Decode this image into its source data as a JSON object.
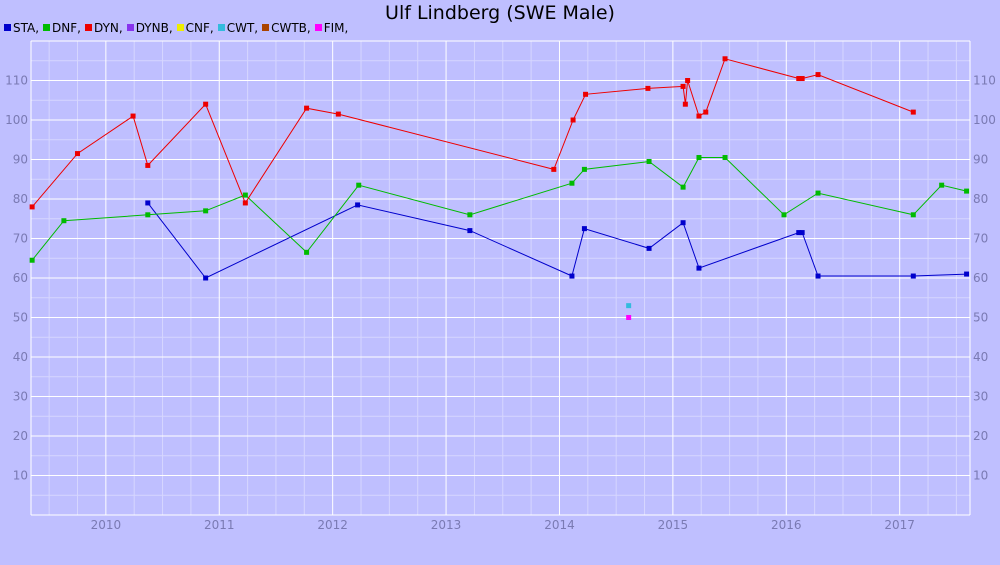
{
  "chart_data": {
    "type": "line",
    "title": "Ulf Lindberg (SWE Male)",
    "xlabel": "",
    "ylabel": "",
    "xlim": [
      2009.34,
      2017.62
    ],
    "ylim": [
      0,
      120
    ],
    "x_ticks": [
      "2010",
      "2011",
      "2012",
      "2013",
      "2014",
      "2015",
      "2016",
      "2017"
    ],
    "y_ticks": [
      "10",
      "20",
      "30",
      "40",
      "50",
      "60",
      "70",
      "80",
      "90",
      "100",
      "110"
    ],
    "grid": true,
    "legend_position": "top-left",
    "series": [
      {
        "name": "STA",
        "color": "#0000cc",
        "points": [
          [
            2010.37,
            79
          ],
          [
            2010.88,
            60
          ],
          [
            2012.22,
            78.5
          ],
          [
            2013.21,
            72
          ],
          [
            2014.11,
            60.5
          ],
          [
            2014.22,
            72.5
          ],
          [
            2014.79,
            67.5
          ],
          [
            2015.09,
            74
          ],
          [
            2015.23,
            62.5
          ],
          [
            2016.11,
            71.5
          ],
          [
            2016.14,
            71.5
          ],
          [
            2016.28,
            60.5
          ],
          [
            2017.12,
            60.5
          ],
          [
            2017.59,
            61
          ]
        ]
      },
      {
        "name": "DNF",
        "color": "#00bb00",
        "points": [
          [
            2009.35,
            64.5
          ],
          [
            2009.63,
            74.5
          ],
          [
            2010.37,
            76
          ],
          [
            2010.88,
            77
          ],
          [
            2011.23,
            81
          ],
          [
            2011.77,
            66.5
          ],
          [
            2012.23,
            83.5
          ],
          [
            2013.21,
            76
          ],
          [
            2014.11,
            84
          ],
          [
            2014.22,
            87.5
          ],
          [
            2014.79,
            89.5
          ],
          [
            2015.09,
            83
          ],
          [
            2015.23,
            90.5
          ],
          [
            2015.46,
            90.5
          ],
          [
            2015.98,
            76
          ],
          [
            2016.28,
            81.5
          ],
          [
            2017.12,
            76
          ],
          [
            2017.37,
            83.5
          ],
          [
            2017.59,
            82
          ]
        ]
      },
      {
        "name": "DYN",
        "color": "#ee0000",
        "points": [
          [
            2009.35,
            78
          ],
          [
            2009.75,
            91.5
          ],
          [
            2010.24,
            101
          ],
          [
            2010.37,
            88.5
          ],
          [
            2010.88,
            104
          ],
          [
            2011.23,
            79
          ],
          [
            2011.77,
            103
          ],
          [
            2012.05,
            101.5
          ],
          [
            2013.95,
            87.5
          ],
          [
            2014.12,
            100
          ],
          [
            2014.23,
            106.5
          ],
          [
            2014.78,
            108
          ],
          [
            2015.09,
            108.5
          ],
          [
            2015.11,
            104
          ],
          [
            2015.13,
            110
          ],
          [
            2015.23,
            101
          ],
          [
            2015.29,
            102
          ],
          [
            2015.46,
            115.5
          ],
          [
            2016.11,
            110.5
          ],
          [
            2016.14,
            110.5
          ],
          [
            2016.28,
            111.5
          ],
          [
            2017.12,
            102
          ]
        ]
      },
      {
        "name": "DYNB",
        "color": "#8833ee",
        "points": []
      },
      {
        "name": "CNF",
        "color": "#eeee00",
        "points": []
      },
      {
        "name": "CWT",
        "color": "#33bbdd",
        "points": [
          [
            2014.61,
            53
          ]
        ]
      },
      {
        "name": "CWTB",
        "color": "#aa4400",
        "points": []
      },
      {
        "name": "FIM",
        "color": "#ff00ff",
        "points": [
          [
            2014.61,
            50
          ]
        ]
      }
    ]
  }
}
